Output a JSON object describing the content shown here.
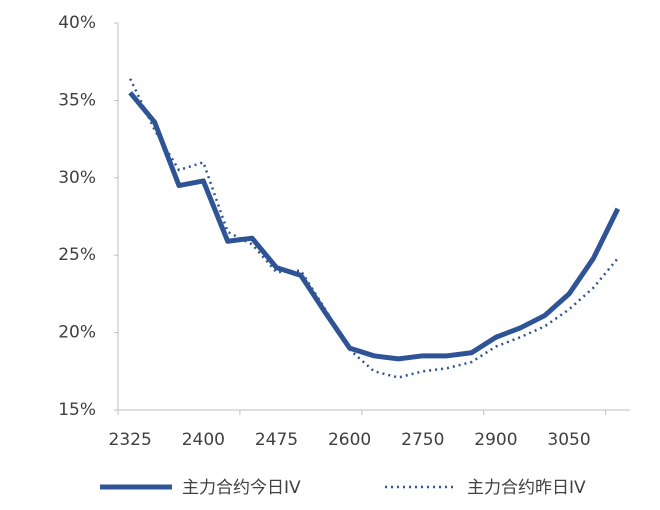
{
  "chart_data": {
    "type": "line",
    "categories": [
      "2325",
      null,
      null,
      "2400",
      null,
      null,
      "2475",
      null,
      null,
      "2600",
      null,
      null,
      "2750",
      null,
      null,
      "2900",
      null,
      null,
      "3050",
      null,
      null
    ],
    "series": [
      {
        "name": "主力合约今日IV",
        "color": "#2f5496",
        "style": "solid",
        "values": [
          35.5,
          33.6,
          29.5,
          29.8,
          25.9,
          26.1,
          24.2,
          23.7,
          21.3,
          19.0,
          18.5,
          18.3,
          18.5,
          18.5,
          18.7,
          19.7,
          20.3,
          21.1,
          22.5,
          24.8,
          28.0
        ]
      },
      {
        "name": "主力合约昨日IV",
        "color": "#2f5496",
        "style": "dotted",
        "values": [
          36.4,
          33.1,
          30.5,
          31.0,
          26.5,
          25.7,
          23.9,
          24.0,
          21.5,
          18.9,
          17.5,
          17.1,
          17.5,
          17.7,
          18.1,
          19.1,
          19.7,
          20.4,
          21.5,
          22.9,
          24.8
        ]
      }
    ],
    "ylim": [
      15,
      40
    ],
    "yticks": [
      {
        "value": 15,
        "label": "15%"
      },
      {
        "value": 20,
        "label": "20%"
      },
      {
        "value": 25,
        "label": "25%"
      },
      {
        "value": 30,
        "label": "30%"
      },
      {
        "value": 35,
        "label": "35%"
      },
      {
        "value": 40,
        "label": "40%"
      }
    ],
    "grid": false,
    "legend": "bottom"
  }
}
